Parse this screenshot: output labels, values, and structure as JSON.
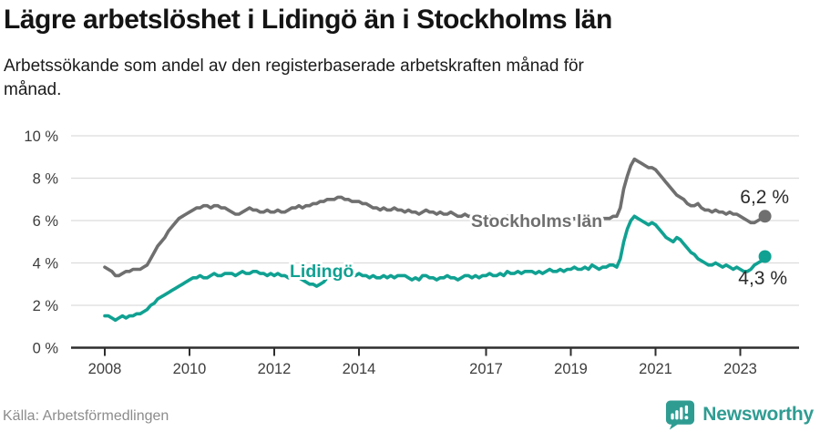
{
  "header": {
    "title": "Lägre arbetslöshet i Lidingö än i Stockholms län",
    "subtitle_lines": [
      "Arbetssökande som andel av den registerbaserade arbetskraften månad för",
      "månad."
    ]
  },
  "footer": {
    "source": "Källa: Arbetsförmedlingen",
    "brand": "Newsworthy"
  },
  "colors": {
    "stockholm_line": "#6f6f6f",
    "lidingo_line": "#10a192",
    "brand_teal": "#2f9c92",
    "gridline": "#dcdcdc",
    "axis": "#2e2e2e",
    "tick_text": "#3d3d3d",
    "value_label_text": "#2b2b2b"
  },
  "chart_data": {
    "type": "line",
    "unit": "%",
    "grid": "horizontal",
    "legend": "inline-labels",
    "ylim": [
      0,
      10
    ],
    "y_tick_labels": [
      "0 %",
      "2 %",
      "4 %",
      "6 %",
      "8 %",
      "10 %"
    ],
    "x_tick_labels": [
      "2008",
      "2010",
      "2012",
      "2014",
      "2017",
      "2019",
      "2021",
      "2023"
    ],
    "x_start_year": 2008,
    "points_per_year": 12,
    "series": [
      {
        "name": "Stockholms län",
        "color": "#6f6f6f",
        "end_label": "6,2 %",
        "values": [
          3.8,
          3.7,
          3.6,
          3.4,
          3.4,
          3.5,
          3.6,
          3.6,
          3.7,
          3.7,
          3.7,
          3.8,
          3.9,
          4.2,
          4.5,
          4.8,
          5.0,
          5.2,
          5.5,
          5.7,
          5.9,
          6.1,
          6.2,
          6.3,
          6.4,
          6.5,
          6.6,
          6.6,
          6.7,
          6.7,
          6.6,
          6.7,
          6.7,
          6.6,
          6.6,
          6.5,
          6.4,
          6.3,
          6.3,
          6.4,
          6.5,
          6.6,
          6.5,
          6.5,
          6.4,
          6.4,
          6.5,
          6.4,
          6.4,
          6.5,
          6.4,
          6.4,
          6.5,
          6.6,
          6.6,
          6.7,
          6.6,
          6.7,
          6.7,
          6.8,
          6.8,
          6.9,
          6.9,
          7.0,
          7.0,
          7.0,
          7.1,
          7.1,
          7.0,
          7.0,
          6.9,
          6.9,
          6.9,
          6.8,
          6.8,
          6.7,
          6.6,
          6.6,
          6.5,
          6.6,
          6.5,
          6.5,
          6.6,
          6.5,
          6.5,
          6.4,
          6.5,
          6.4,
          6.4,
          6.3,
          6.4,
          6.5,
          6.4,
          6.4,
          6.3,
          6.4,
          6.3,
          6.3,
          6.4,
          6.3,
          6.2,
          6.2,
          6.3,
          6.2,
          6.2,
          6.2,
          6.2,
          6.2,
          6.2,
          6.2,
          6.1,
          6.1,
          6.0,
          6.1,
          6.2,
          6.2,
          6.1,
          6.1,
          6.0,
          6.0,
          6.1,
          6.1,
          6.0,
          5.9,
          5.9,
          6.0,
          6.1,
          6.0,
          6.0,
          5.9,
          5.9,
          6.0,
          6.0,
          6.1,
          6.0,
          6.0,
          6.0,
          6.1,
          6.2,
          6.2,
          6.1,
          6.1,
          6.1,
          6.1,
          6.2,
          6.2,
          6.6,
          7.5,
          8.1,
          8.6,
          8.9,
          8.8,
          8.7,
          8.6,
          8.5,
          8.5,
          8.4,
          8.2,
          8.0,
          7.8,
          7.6,
          7.4,
          7.2,
          7.1,
          7.0,
          6.8,
          6.7,
          6.7,
          6.8,
          6.6,
          6.5,
          6.5,
          6.4,
          6.5,
          6.4,
          6.4,
          6.3,
          6.4,
          6.3,
          6.3,
          6.2,
          6.1,
          6.0,
          5.9,
          5.9,
          6.0,
          6.1,
          6.2
        ]
      },
      {
        "name": "Lidingö",
        "color": "#10a192",
        "end_label": "4,3 %",
        "values": [
          1.5,
          1.5,
          1.4,
          1.3,
          1.4,
          1.5,
          1.4,
          1.5,
          1.5,
          1.6,
          1.6,
          1.7,
          1.8,
          2.0,
          2.1,
          2.3,
          2.4,
          2.5,
          2.6,
          2.7,
          2.8,
          2.9,
          3.0,
          3.1,
          3.2,
          3.3,
          3.3,
          3.4,
          3.3,
          3.3,
          3.4,
          3.5,
          3.4,
          3.4,
          3.5,
          3.5,
          3.5,
          3.4,
          3.5,
          3.6,
          3.5,
          3.5,
          3.6,
          3.6,
          3.5,
          3.5,
          3.4,
          3.5,
          3.4,
          3.5,
          3.4,
          3.4,
          3.3,
          3.3,
          3.4,
          3.3,
          3.2,
          3.1,
          3.0,
          3.0,
          2.9,
          3.0,
          3.1,
          3.3,
          3.4,
          3.4,
          3.5,
          3.4,
          3.5,
          3.4,
          3.5,
          3.4,
          3.5,
          3.4,
          3.4,
          3.3,
          3.4,
          3.3,
          3.3,
          3.4,
          3.3,
          3.4,
          3.3,
          3.4,
          3.4,
          3.4,
          3.3,
          3.2,
          3.3,
          3.2,
          3.4,
          3.4,
          3.3,
          3.3,
          3.2,
          3.3,
          3.3,
          3.4,
          3.3,
          3.3,
          3.2,
          3.3,
          3.4,
          3.4,
          3.3,
          3.4,
          3.3,
          3.4,
          3.4,
          3.5,
          3.4,
          3.4,
          3.5,
          3.4,
          3.6,
          3.5,
          3.5,
          3.6,
          3.5,
          3.6,
          3.6,
          3.6,
          3.5,
          3.6,
          3.5,
          3.6,
          3.7,
          3.6,
          3.6,
          3.7,
          3.6,
          3.7,
          3.7,
          3.8,
          3.7,
          3.7,
          3.8,
          3.7,
          3.9,
          3.8,
          3.7,
          3.8,
          3.8,
          3.9,
          3.9,
          3.8,
          4.2,
          5.0,
          5.6,
          6.0,
          6.2,
          6.1,
          6.0,
          5.9,
          5.8,
          5.9,
          5.8,
          5.6,
          5.4,
          5.2,
          5.1,
          5.0,
          5.2,
          5.1,
          4.9,
          4.7,
          4.5,
          4.4,
          4.2,
          4.1,
          4.0,
          3.9,
          3.9,
          4.0,
          3.9,
          3.8,
          3.9,
          3.8,
          3.7,
          3.8,
          3.7,
          3.6,
          3.6,
          3.7,
          3.9,
          4.0,
          4.1,
          4.3
        ]
      }
    ]
  }
}
